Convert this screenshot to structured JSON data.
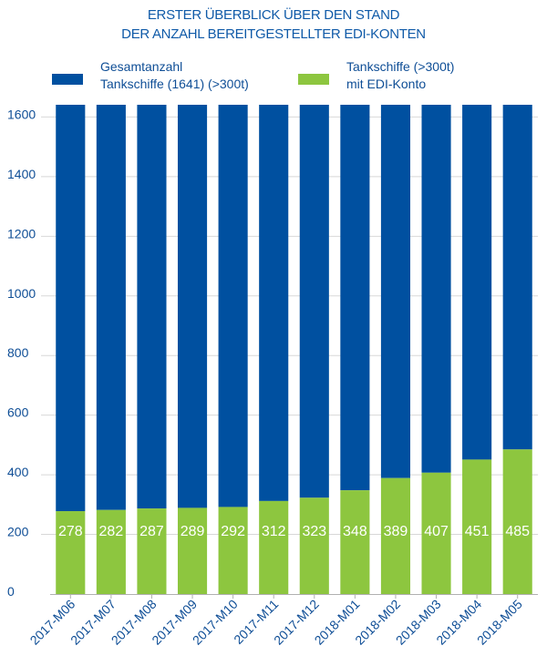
{
  "title_line1": "ERSTER ÜBERBLICK ÜBER DEN STAND",
  "title_line2": "DER ANZAHL BEREITGESTELLTER EDI-KONTEN",
  "legend": {
    "total": {
      "line1": "Gesamtanzahl",
      "line2": "Tankschiffe (1641) (>300t)",
      "color": "#0050a0"
    },
    "edi": {
      "line1": "Tankschiffe (>300t)",
      "line2": "mit EDI-Konto",
      "color": "#8dc63f"
    }
  },
  "chart_data": {
    "type": "bar",
    "stacked": true,
    "categories": [
      "2017-M06",
      "2017-M07",
      "2017-M08",
      "2017-M09",
      "2017-M10",
      "2017-M11",
      "2017-M12",
      "2018-M01",
      "2018-M02",
      "2018-M03",
      "2018-M04",
      "2018-M05"
    ],
    "series": [
      {
        "name": "Tankschiffe (>300t) mit EDI-Konto",
        "values": [
          278,
          282,
          287,
          289,
          292,
          312,
          323,
          348,
          389,
          407,
          451,
          485
        ],
        "color": "#8dc63f"
      },
      {
        "name": "Gesamtanzahl Tankschiffe (1641) (>300t)",
        "values": [
          1363,
          1359,
          1354,
          1352,
          1349,
          1329,
          1318,
          1293,
          1252,
          1234,
          1190,
          1156
        ],
        "color": "#0050a0"
      }
    ],
    "ylim": [
      0,
      1641
    ],
    "yticks": [
      0,
      200,
      400,
      600,
      800,
      1000,
      1200,
      1400,
      1600
    ],
    "xlabel": "",
    "ylabel": "",
    "grid": true,
    "data_labels": [
      "278",
      "282",
      "287",
      "289",
      "292",
      "312",
      "323",
      "348",
      "389",
      "407",
      "451",
      "485"
    ]
  }
}
